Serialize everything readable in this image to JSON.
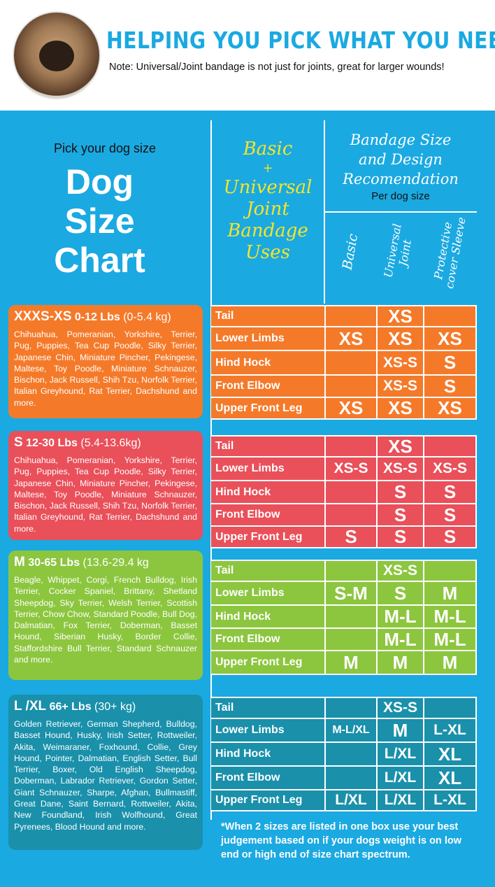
{
  "header": {
    "title": "HELPING YOU PICK WHAT YOU NEED",
    "note": "Note: Universal/Joint bandage is not just for joints, great for larger wounds!"
  },
  "left": {
    "pick": "Pick your dog size",
    "title": [
      "Dog",
      "Size",
      "Chart"
    ]
  },
  "uses_heading": [
    "Basic",
    "+",
    "Universal",
    "Joint",
    "Bandage",
    "Uses"
  ],
  "rec_heading": [
    "Bandage Size",
    "and Design",
    "Recomendation"
  ],
  "per_dog": "Per dog size",
  "columns": [
    "Basic",
    "Universal Joint",
    "Protective cover Sleeve"
  ],
  "colors": {
    "background": "#1ba9e1",
    "title": "#1aa9e1",
    "uses": "#f5e529"
  },
  "groups": [
    {
      "size": "XXXS-XS",
      "lbs": "0-12 Lbs",
      "kg": "(0-5.4 kg)",
      "color": "#f47a2a",
      "breeds": "Chihuahua, Pomeranian, Yorkshire, Terrier, Pug, Puppies, Tea Cup Poodle, Silky Terrier, Japanese Chin, Miniature Pincher, Pekingese, Maltese, Toy Poodle, Miniature Schnauzer, Bischon, Jack Russell, Shih Tzu, Norfolk Terrier, Italian Greyhound, Rat Terrier, Dachshund and more.",
      "rows": [
        [
          "Tail",
          "",
          "XS",
          ""
        ],
        [
          "Lower Limbs",
          "XS",
          "XS",
          "XS"
        ],
        [
          "Hind Hock",
          "",
          "XS-S",
          "S"
        ],
        [
          "Front Elbow",
          "",
          "XS-S",
          "S"
        ],
        [
          "Upper Front Leg",
          "XS",
          "XS",
          "XS"
        ]
      ]
    },
    {
      "size": "S",
      "lbs": "12-30 Lbs",
      "kg": "(5.4-13.6kg)",
      "color": "#e9505a",
      "breeds": "Chihuahua, Pomeranian, Yorkshire, Terrier, Pug, Puppies, Tea Cup Poodle, Silky Terrier, Japanese Chin, Miniature Pincher, Pekingese, Maltese, Toy Poodle, Miniature Schnauzer, Bischon, Jack Russell, Shih Tzu, Norfolk Terrier, Italian Greyhound, Rat Terrier, Dachshund and more.",
      "rows": [
        [
          "Tail",
          "",
          "XS",
          ""
        ],
        [
          "Lower Limbs",
          "XS-S",
          "XS-S",
          "XS-S"
        ],
        [
          "Hind Hock",
          "",
          "S",
          "S"
        ],
        [
          "Front Elbow",
          "",
          "S",
          "S"
        ],
        [
          "Upper Front Leg",
          "S",
          "S",
          "S"
        ]
      ]
    },
    {
      "size": "M",
      "lbs": "30-65 Lbs",
      "kg": "(13.6-29.4 kg",
      "color": "#8cc63f",
      "breeds": "Beagle, Whippet, Corgi, French Bulldog, Irish Terrier, Cocker Spaniel, Brittany, Shetland Sheepdog, Sky Terrier, Welsh Terrier, Scottish Terrier, Chow Chow, Standard Poodle, Bull Dog, Dalmatian, Fox Terrier, Doberman, Basset Hound, Siberian Husky, Border Collie, Staffordshire Bull Terrier, Standard Schnauzer and more.",
      "rows": [
        [
          "Tail",
          "",
          "XS-S",
          ""
        ],
        [
          "Lower Limbs",
          "S-M",
          "S",
          "M"
        ],
        [
          "Hind Hock",
          "",
          "M-L",
          "M-L"
        ],
        [
          "Front Elbow",
          "",
          "M-L",
          "M-L"
        ],
        [
          "Upper Front Leg",
          "M",
          "M",
          "M"
        ]
      ]
    },
    {
      "size": "L /XL",
      "lbs": "66+ Lbs",
      "kg": "(30+ kg)",
      "color": "#1a90ab",
      "breeds": "Golden Retriever, German Shepherd, Bulldog, Basset Hound, Husky, Irish Setter, Rottweiler, Akita, Weimaraner, Foxhound, Collie, Grey Hound, Pointer, Dalmatian, English Setter, Bull Terrier, Boxer, Old English Sheepdog, Doberman, Labrador Retriever, Gordon Setter, Giant Schnauzer, Sharpe, Afghan, Bullmastiff, Great Dane, Saint Bernard, Rottweiler, Akita, New Foundland, Irish Wolfhound, Great Pyrenees, Blood Hound and more.",
      "rows": [
        [
          "Tail",
          "",
          "XS-S",
          ""
        ],
        [
          "Lower Limbs",
          "M-L/XL",
          "M",
          "L-XL"
        ],
        [
          "Hind Hock",
          "",
          "L/XL",
          "XL"
        ],
        [
          "Front Elbow",
          "",
          "L/XL",
          "XL"
        ],
        [
          "Upper Front Leg",
          "L/XL",
          "L/XL",
          "L-XL"
        ]
      ]
    }
  ],
  "footnote": "*When 2 sizes are listed in one box use your best judgement based on if your dogs weight is on low end or high end of size chart spectrum."
}
